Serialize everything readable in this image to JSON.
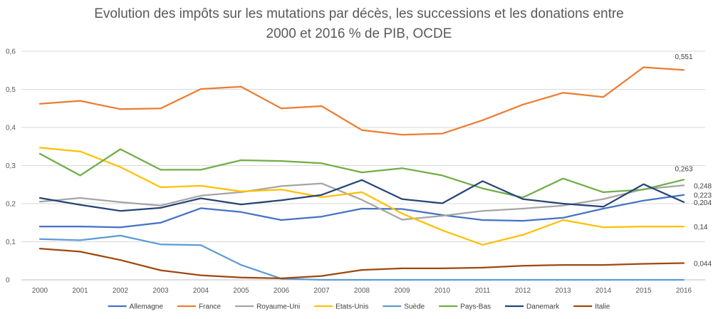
{
  "chart_data": {
    "type": "line",
    "title_line1": "Evolution des impôts sur les mutations par décès, les successions et les donations entre",
    "title_line2": "2000 et 2016 % de PIB, OCDE",
    "x": [
      "2000",
      "2001",
      "2002",
      "2003",
      "2004",
      "2005",
      "2006",
      "2007",
      "2008",
      "2009",
      "2010",
      "2011",
      "2012",
      "2013",
      "2014",
      "2015",
      "2016"
    ],
    "ylim": [
      0,
      0.6
    ],
    "yticks": [
      {
        "value": 0,
        "label": "0"
      },
      {
        "value": 0.1,
        "label": "0,1"
      },
      {
        "value": 0.2,
        "label": "0,2"
      },
      {
        "value": 0.3,
        "label": "0,3"
      },
      {
        "value": 0.4,
        "label": "0,4"
      },
      {
        "value": 0.5,
        "label": "0,5"
      },
      {
        "value": 0.6,
        "label": "0,6"
      }
    ],
    "grid": true,
    "legend_position": "bottom",
    "series": [
      {
        "name": "Allemagne",
        "color": "#4472C4",
        "values": [
          0.14,
          0.14,
          0.138,
          0.15,
          0.188,
          0.178,
          0.157,
          0.166,
          0.187,
          0.186,
          0.17,
          0.157,
          0.155,
          0.163,
          0.187,
          0.208,
          0.223
        ],
        "end_label": "0,223"
      },
      {
        "name": "France",
        "color": "#ED7D31",
        "values": [
          0.462,
          0.47,
          0.448,
          0.45,
          0.501,
          0.507,
          0.45,
          0.456,
          0.393,
          0.381,
          0.384,
          0.419,
          0.46,
          0.491,
          0.48,
          0.558,
          0.551
        ],
        "end_label": "0,551"
      },
      {
        "name": "Royaume-Uni",
        "color": "#A5A5A5",
        "values": [
          0.205,
          0.215,
          0.204,
          0.195,
          0.221,
          0.23,
          0.246,
          0.253,
          0.21,
          0.158,
          0.168,
          0.181,
          0.187,
          0.195,
          0.212,
          0.238,
          0.248
        ],
        "end_label": "0,248"
      },
      {
        "name": "Etats-Unis",
        "color": "#FFC000",
        "values": [
          0.347,
          0.337,
          0.296,
          0.243,
          0.247,
          0.232,
          0.237,
          0.217,
          0.23,
          0.174,
          0.13,
          0.092,
          0.118,
          0.157,
          0.138,
          0.14,
          0.14
        ],
        "end_label": "0,14"
      },
      {
        "name": "Suède",
        "color": "#5B9BD5",
        "values": [
          0.107,
          0.104,
          0.116,
          0.093,
          0.091,
          0.039,
          0.003,
          0.0,
          0.0,
          0.0,
          0.0,
          0.0,
          0.0,
          0.0,
          0.0,
          0.0,
          0.0
        ],
        "end_label": ""
      },
      {
        "name": "Pays-Bas",
        "color": "#70AD47",
        "values": [
          0.331,
          0.274,
          0.343,
          0.289,
          0.289,
          0.314,
          0.312,
          0.306,
          0.282,
          0.293,
          0.274,
          0.24,
          0.216,
          0.266,
          0.23,
          0.237,
          0.263
        ],
        "end_label": "0,263"
      },
      {
        "name": "Danemark",
        "color": "#264478",
        "values": [
          0.215,
          0.197,
          0.181,
          0.189,
          0.214,
          0.198,
          0.209,
          0.223,
          0.262,
          0.212,
          0.201,
          0.259,
          0.212,
          0.2,
          0.192,
          0.251,
          0.204
        ],
        "end_label": "0,204"
      },
      {
        "name": "Italie",
        "color": "#9E480E",
        "values": [
          0.082,
          0.074,
          0.052,
          0.025,
          0.012,
          0.006,
          0.004,
          0.01,
          0.026,
          0.03,
          0.03,
          0.032,
          0.037,
          0.039,
          0.039,
          0.042,
          0.044
        ],
        "end_label": "0,044"
      }
    ]
  }
}
